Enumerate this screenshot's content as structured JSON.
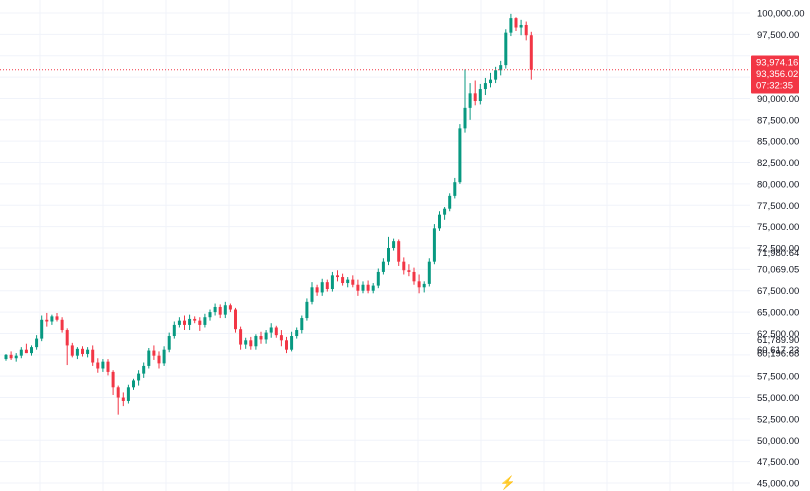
{
  "chart_data": {
    "type": "candlestick",
    "grid": true,
    "y_axis": {
      "position": "right",
      "range": [
        45000,
        101000
      ],
      "ticks": [
        "100,000.00",
        "97,500.00",
        "90,000.00",
        "87,500.00",
        "85,000.00",
        "82,500.00",
        "80,000.00",
        "77,500.00",
        "75,000.00",
        "72,500.00",
        "71,980.64",
        "70,069.05",
        "67,500.00",
        "65,000.00",
        "62,500.00",
        "61,789.90",
        "60,617.23",
        "60,196.68",
        "57,500.00",
        "55,000.00",
        "52,500.00",
        "50,000.00",
        "47,500.00",
        "45,000.00"
      ]
    },
    "price_tags": [
      {
        "text": "93,974.16",
        "value": 93974.16
      },
      {
        "text": "93,356.02",
        "value": 93356.02
      },
      {
        "text": "07:32:35"
      }
    ],
    "current_price_line": 93356.02,
    "colors": {
      "up": "#089981",
      "down": "#f23645",
      "tag": "#f23645",
      "grid": "#f0f3fa",
      "text": "#131722"
    },
    "candles": [
      [
        59500,
        60100,
        59300,
        60000
      ],
      [
        60000,
        60400,
        59400,
        59600
      ],
      [
        59600,
        60200,
        59200,
        59900
      ],
      [
        59900,
        60900,
        59600,
        60600
      ],
      [
        60600,
        61300,
        60200,
        60200
      ],
      [
        60200,
        61100,
        59900,
        60900
      ],
      [
        60900,
        62300,
        60600,
        61900
      ],
      [
        61900,
        64600,
        61600,
        64100
      ],
      [
        64100,
        64900,
        63300,
        63900
      ],
      [
        63900,
        64700,
        63500,
        64500
      ],
      [
        64500,
        64900,
        63900,
        64100
      ],
      [
        64100,
        64400,
        62600,
        62900
      ],
      [
        62900,
        63100,
        58800,
        61100
      ],
      [
        61100,
        61400,
        59700,
        59900
      ],
      [
        59900,
        60900,
        59500,
        60700
      ],
      [
        60700,
        61000,
        59800,
        60100
      ],
      [
        60100,
        60900,
        59700,
        60600
      ],
      [
        60600,
        61100,
        58700,
        59100
      ],
      [
        59100,
        59600,
        57900,
        58400
      ],
      [
        58400,
        59500,
        58000,
        59200
      ],
      [
        59200,
        59500,
        57600,
        58000
      ],
      [
        58000,
        58200,
        55300,
        56200
      ],
      [
        56200,
        56400,
        53000,
        55000
      ],
      [
        55000,
        55600,
        54000,
        54600
      ],
      [
        54600,
        56500,
        54300,
        56200
      ],
      [
        56200,
        57200,
        55900,
        57000
      ],
      [
        57000,
        58200,
        56400,
        57800
      ],
      [
        57800,
        59100,
        57300,
        58700
      ],
      [
        58700,
        60800,
        58400,
        60500
      ],
      [
        60500,
        61100,
        59400,
        59900
      ],
      [
        59900,
        60400,
        58400,
        59000
      ],
      [
        59000,
        61000,
        58700,
        60600
      ],
      [
        60600,
        62600,
        60300,
        62200
      ],
      [
        62200,
        63900,
        61900,
        63500
      ],
      [
        63500,
        64400,
        63200,
        64000
      ],
      [
        64000,
        64600,
        62900,
        63500
      ],
      [
        63500,
        64700,
        62900,
        64200
      ],
      [
        64200,
        64500,
        63700,
        64000
      ],
      [
        64000,
        64400,
        62800,
        63500
      ],
      [
        63500,
        64800,
        63200,
        64400
      ],
      [
        64400,
        65300,
        64000,
        65000
      ],
      [
        65000,
        66000,
        64600,
        65600
      ],
      [
        65600,
        65900,
        64300,
        64700
      ],
      [
        64700,
        66200,
        64300,
        65800
      ],
      [
        65800,
        66000,
        65000,
        65300
      ],
      [
        65300,
        65500,
        62600,
        63000
      ],
      [
        63000,
        63300,
        60600,
        61200
      ],
      [
        61200,
        62000,
        60700,
        61700
      ],
      [
        61700,
        62100,
        60600,
        61000
      ],
      [
        61000,
        62400,
        60600,
        62200
      ],
      [
        62200,
        62700,
        61300,
        61800
      ],
      [
        61800,
        62900,
        61300,
        62600
      ],
      [
        62600,
        63700,
        62000,
        63200
      ],
      [
        63200,
        63400,
        62000,
        62300
      ],
      [
        62300,
        62900,
        61000,
        61700
      ],
      [
        61700,
        62100,
        60200,
        60600
      ],
      [
        60600,
        62700,
        60400,
        62200
      ],
      [
        62200,
        63200,
        61900,
        62900
      ],
      [
        62900,
        64600,
        62500,
        64300
      ],
      [
        64300,
        66600,
        64000,
        66200
      ],
      [
        66200,
        68500,
        65900,
        67900
      ],
      [
        67900,
        68200,
        66900,
        67300
      ],
      [
        67300,
        68900,
        66900,
        68500
      ],
      [
        68500,
        68800,
        67400,
        67700
      ],
      [
        67700,
        69700,
        67400,
        69300
      ],
      [
        69300,
        69900,
        68600,
        69100
      ],
      [
        69100,
        69500,
        68100,
        68400
      ],
      [
        68400,
        69100,
        67900,
        68800
      ],
      [
        68800,
        69300,
        67900,
        68200
      ],
      [
        68200,
        68800,
        66900,
        67500
      ],
      [
        67500,
        68600,
        67200,
        68200
      ],
      [
        68200,
        68700,
        67200,
        67500
      ],
      [
        67500,
        68400,
        67200,
        68100
      ],
      [
        68100,
        70100,
        67800,
        69700
      ],
      [
        69700,
        71300,
        69400,
        70900
      ],
      [
        70900,
        73800,
        70500,
        72500
      ],
      [
        72500,
        73600,
        72200,
        73300
      ],
      [
        73300,
        73500,
        70400,
        70900
      ],
      [
        70900,
        71400,
        69400,
        69900
      ],
      [
        69900,
        70600,
        69200,
        69700
      ],
      [
        69700,
        70200,
        68200,
        68600
      ],
      [
        68600,
        69400,
        67200,
        67900
      ],
      [
        67900,
        68600,
        67300,
        68300
      ],
      [
        68300,
        71300,
        68000,
        70900
      ],
      [
        70900,
        75300,
        70600,
        74800
      ],
      [
        74800,
        76800,
        74500,
        76400
      ],
      [
        76400,
        77300,
        75800,
        77100
      ],
      [
        77100,
        78900,
        76800,
        78600
      ],
      [
        78600,
        80700,
        78300,
        80200
      ],
      [
        80200,
        87000,
        80000,
        86500
      ],
      [
        86500,
        93400,
        86000,
        88900
      ],
      [
        88900,
        91800,
        87500,
        90600
      ],
      [
        90600,
        92100,
        89200,
        89700
      ],
      [
        89700,
        91700,
        89300,
        91100
      ],
      [
        91100,
        92400,
        90400,
        91800
      ],
      [
        91800,
        93000,
        91300,
        92200
      ],
      [
        92200,
        93700,
        91800,
        93300
      ],
      [
        93300,
        94400,
        92700,
        93900
      ],
      [
        93900,
        98100,
        93500,
        97700
      ],
      [
        97700,
        99900,
        97300,
        99400
      ],
      [
        99400,
        99500,
        97900,
        98300
      ],
      [
        98300,
        99200,
        97400,
        98600
      ],
      [
        98600,
        99000,
        96800,
        97400
      ],
      [
        97400,
        97800,
        92200,
        93356
      ]
    ],
    "watermark": "⚡"
  }
}
